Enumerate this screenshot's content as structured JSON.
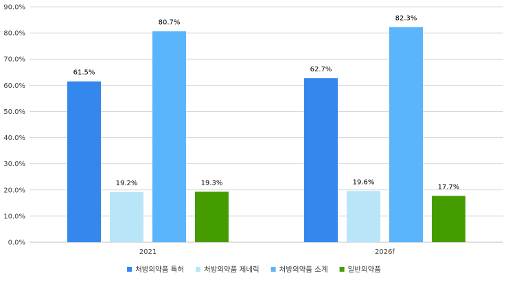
{
  "chart_data": {
    "type": "bar",
    "categories": [
      "2021",
      "2026f"
    ],
    "series": [
      {
        "name": "처방의약품 특허",
        "values": [
          61.5,
          62.7
        ],
        "labels": [
          "61.5%",
          "62.7%"
        ],
        "color": "#3487EC"
      },
      {
        "name": "처방의약품 제네릭",
        "values": [
          19.2,
          19.6
        ],
        "labels": [
          "19.2%",
          "19.6%"
        ],
        "color": "#B8E6F8"
      },
      {
        "name": "처방의약품 소계",
        "values": [
          80.7,
          82.3
        ],
        "labels": [
          "80.7%",
          "82.3%"
        ],
        "color": "#5AB5FC"
      },
      {
        "name": "일반의약품",
        "values": [
          19.3,
          17.7
        ],
        "labels": [
          "19.3%",
          "17.7%"
        ],
        "color": "#459C00"
      }
    ],
    "yticks": [
      "0.0%",
      "10.0%",
      "20.0%",
      "30.0%",
      "40.0%",
      "50.0%",
      "60.0%",
      "70.0%",
      "80.0%",
      "90.0%"
    ],
    "ylim": [
      0,
      90
    ],
    "grid": true,
    "legend_position": "bottom"
  }
}
